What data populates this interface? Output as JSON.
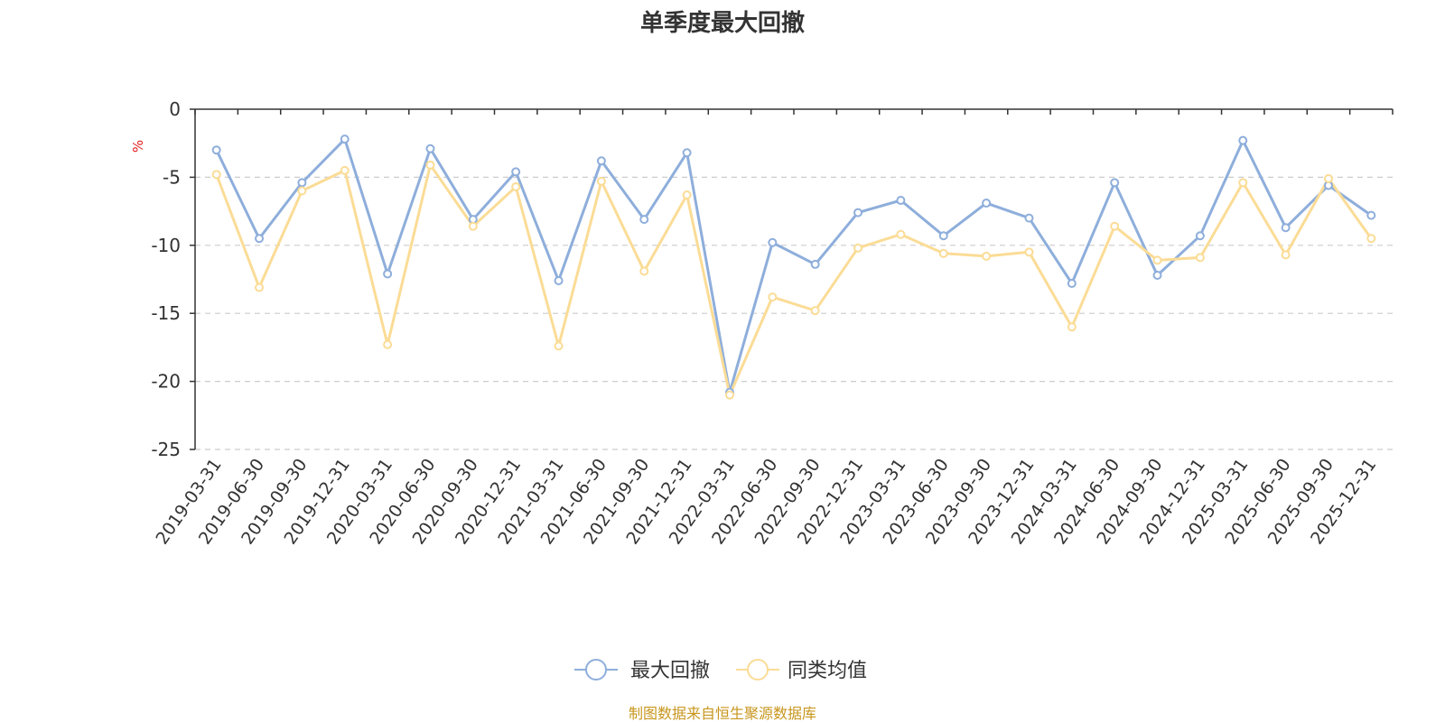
{
  "chart_data": {
    "type": "line",
    "title": "单季度最大回撤",
    "ylabel": "%",
    "xlabel": "",
    "ylim": [
      -25,
      0
    ],
    "yticks": [
      0,
      -5,
      -10,
      -15,
      -20,
      -25
    ],
    "grid": true,
    "legend_position": "bottom",
    "categories": [
      "2019-03-31",
      "2019-06-30",
      "2019-09-30",
      "2019-12-31",
      "2020-03-31",
      "2020-06-30",
      "2020-09-30",
      "2020-12-31",
      "2021-03-31",
      "2021-06-30",
      "2021-09-30",
      "2021-12-31",
      "2022-03-31",
      "2022-06-30",
      "2022-09-30",
      "2022-12-31",
      "2023-03-31",
      "2023-06-30",
      "2023-09-30",
      "2023-12-31",
      "2024-03-31",
      "2024-06-30",
      "2024-09-30",
      "2024-12-31",
      "2025-03-31",
      "2025-06-30",
      "2025-09-30",
      "2025-12-31"
    ],
    "series": [
      {
        "name": "最大回撤",
        "color": "#8eaedb",
        "values": [
          -3.0,
          -9.5,
          -5.4,
          -2.2,
          -12.1,
          -2.9,
          -8.1,
          -4.6,
          -12.6,
          -3.8,
          -8.1,
          -3.2,
          -20.8,
          -9.8,
          -11.4,
          -7.6,
          -6.7,
          -9.3,
          -6.9,
          -8.0,
          -12.8,
          -5.4,
          -12.2,
          -9.3,
          -2.3,
          -8.7,
          -5.6,
          -7.8
        ]
      },
      {
        "name": "同类均值",
        "color": "#fbdc96",
        "values": [
          -4.8,
          -13.1,
          -6.0,
          -4.5,
          -17.3,
          -4.1,
          -8.6,
          -5.7,
          -17.4,
          -5.3,
          -11.9,
          -6.3,
          -21.0,
          -13.8,
          -14.8,
          -10.2,
          -9.2,
          -10.6,
          -10.8,
          -10.5,
          -16.0,
          -8.6,
          -11.1,
          -10.9,
          -5.4,
          -10.7,
          -5.1,
          -9.5
        ]
      }
    ],
    "source": "制图数据来自恒生聚源数据库"
  }
}
